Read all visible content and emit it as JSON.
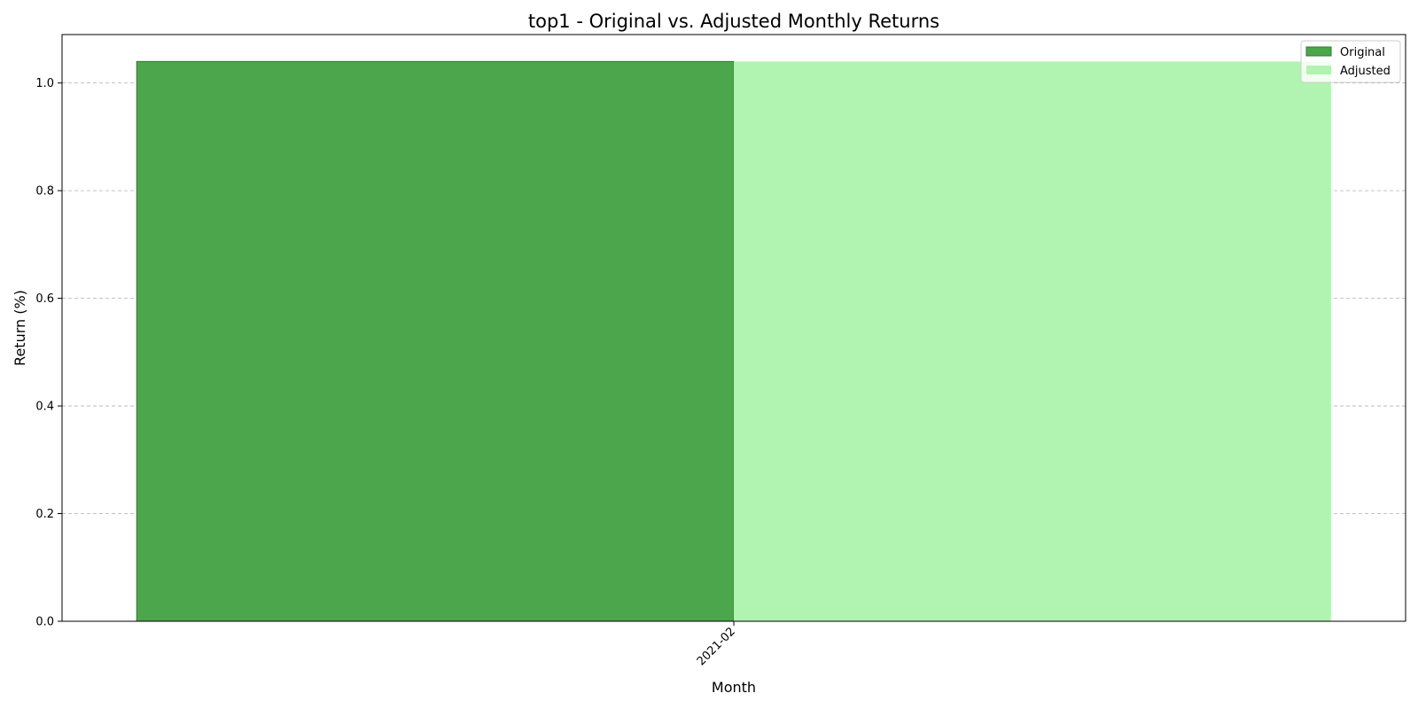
{
  "chart_data": {
    "type": "bar",
    "title": "top1 - Original vs. Adjusted Monthly Returns",
    "xlabel": "Month",
    "ylabel": "Return (%)",
    "categories": [
      "2021-02"
    ],
    "series": [
      {
        "name": "Original",
        "values": [
          1.04
        ],
        "color": "#4ca64c",
        "edge": "#2e7d2e"
      },
      {
        "name": "Adjusted",
        "values": [
          1.04
        ],
        "color": "#b1f3b0"
      }
    ],
    "ylim": [
      0,
      1.09
    ],
    "yticks": [
      "0.0",
      "0.2",
      "0.4",
      "0.6",
      "0.8",
      "1.0"
    ],
    "grid": "y-dashed",
    "legend": "top-right"
  }
}
